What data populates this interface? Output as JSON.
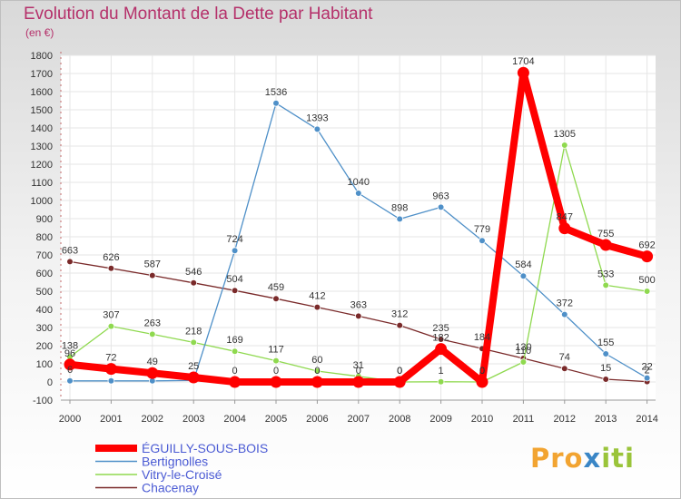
{
  "chart_data": {
    "type": "line",
    "title": "Evolution du Montant de la Dette par Habitant",
    "subtitle": "(en €)",
    "x": [
      "2000",
      "2001",
      "2002",
      "2003",
      "2004",
      "2005",
      "2006",
      "2007",
      "2008",
      "2009",
      "2010",
      "2011",
      "2012",
      "2013",
      "2014"
    ],
    "ylim": [
      -100,
      1800
    ],
    "yticks": [
      -100,
      0,
      100,
      200,
      300,
      400,
      500,
      600,
      700,
      800,
      900,
      1000,
      1100,
      1200,
      1300,
      1400,
      1500,
      1600,
      1700,
      1800
    ],
    "grid": true,
    "legend_position": "bottom-left",
    "series": [
      {
        "name": "ÉGUILLY-SOUS-BOIS",
        "color": "#ff0000",
        "values": [
          96,
          72,
          49,
          25,
          0,
          0,
          0,
          0,
          0,
          182,
          0,
          1704,
          847,
          755,
          692
        ],
        "labels": [
          "96",
          "72",
          "49",
          "25",
          "0",
          "0",
          "0",
          "0",
          "0",
          "182",
          "0",
          "1704",
          "847",
          "755",
          "692"
        ]
      },
      {
        "name": "Bertignolles",
        "color": "#4f90c8",
        "values": [
          6,
          6,
          6,
          8,
          724,
          1536,
          1393,
          1040,
          898,
          963,
          779,
          584,
          372,
          155,
          22
        ],
        "labels": [
          "6",
          "",
          "",
          "",
          "724",
          "1536",
          "1393",
          "1040",
          "898",
          "963",
          "779",
          "584",
          "372",
          "155",
          "22"
        ]
      },
      {
        "name": "Vitry-le-Croisé",
        "color": "#8fd94f",
        "values": [
          138,
          307,
          263,
          218,
          169,
          117,
          60,
          31,
          0,
          1,
          0,
          110,
          1305,
          533,
          500
        ],
        "labels": [
          "138",
          "307",
          "263",
          "218",
          "169",
          "117",
          "60",
          "31",
          "0",
          "1",
          "0",
          "110",
          "1305",
          "533",
          "500"
        ]
      },
      {
        "name": "Chacenay",
        "color": "#7a2a2a",
        "values": [
          663,
          626,
          587,
          546,
          504,
          459,
          412,
          363,
          312,
          235,
          184,
          130,
          74,
          15,
          2
        ],
        "labels": [
          "663",
          "626",
          "587",
          "546",
          "504",
          "459",
          "412",
          "363",
          "312",
          "235",
          "184",
          "130",
          "74",
          "15",
          "2"
        ]
      }
    ]
  },
  "brand": {
    "p1": "Pro",
    "p2": "x",
    "p3": "iti"
  }
}
